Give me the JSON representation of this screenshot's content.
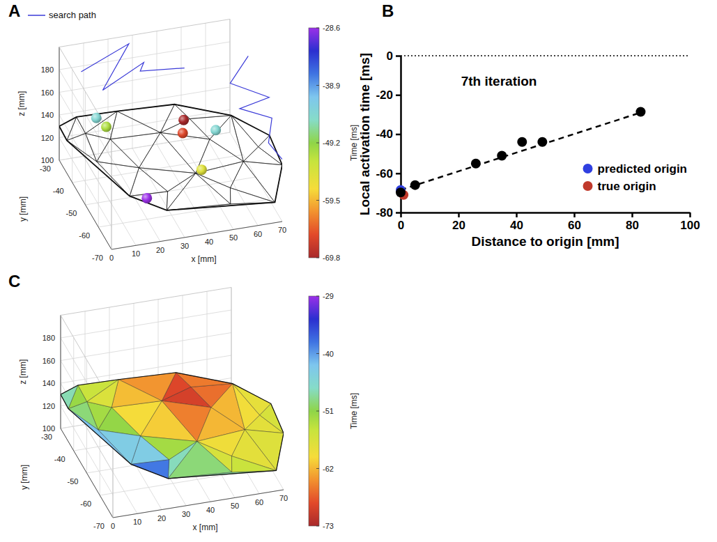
{
  "chart_data": [
    {
      "panel": "A",
      "type": "scatter3d",
      "xlabel": "x [mm]",
      "ylabel": "y [mm]",
      "zlabel": "z [mm]",
      "xlim": [
        0,
        70
      ],
      "xticks": [
        0,
        10,
        20,
        30,
        40,
        50,
        60,
        70
      ],
      "ylim": [
        -70,
        -30
      ],
      "yticks": [
        -70,
        -60,
        -50,
        -40,
        -30
      ],
      "zlim": [
        100,
        200
      ],
      "zticks": [
        100,
        120,
        140,
        160,
        180
      ],
      "grid": true,
      "legend": "upper left",
      "mesh": {
        "x": [
          0,
          6,
          20,
          43,
          63,
          68,
          70,
          67,
          52,
          28,
          16,
          10,
          1,
          15,
          34,
          51,
          60,
          22,
          42,
          53,
          30,
          7,
          46,
          65
        ],
        "y": [
          -30,
          -32,
          -37,
          -38,
          -44,
          -64,
          -70,
          -70,
          -64,
          -60,
          -54,
          -40,
          -34,
          -41,
          -44,
          -50,
          -59,
          -50,
          -56,
          -62,
          -57,
          -37,
          -44,
          -61
        ],
        "z": [
          130,
          140,
          150,
          150,
          145,
          165,
          150,
          118,
          110,
          105,
          110,
          115,
          125,
          135,
          140,
          140,
          135,
          125,
          125,
          120,
          115,
          135,
          148,
          150
        ]
      },
      "series": [
        {
          "name": "search path",
          "type": "line",
          "color": "#3a3ad8",
          "x": [
            9,
            28,
            13,
            32,
            30,
            46,
            null,
            70,
            61,
            70,
            59,
            69,
            66,
            70
          ],
          "y": [
            -30,
            -31,
            -39,
            -35,
            -36,
            -40,
            null,
            -44,
            -47,
            -60,
            -58,
            -64,
            -67,
            -70
          ],
          "z": [
            175,
            195,
            175,
            185,
            180,
            185,
            null,
            195,
            180,
            190,
            180,
            180,
            165,
            155
          ]
        },
        {
          "type": "scatter",
          "marker": "sphere",
          "x": [
            43,
            41,
            45,
            15,
            54,
            12,
            22
          ],
          "y": [
            -45,
            -48,
            -55,
            -38,
            -49,
            -36,
            -56
          ],
          "z": [
            150,
            145,
            125,
            140,
            145,
            145,
            110
          ],
          "time": [
            -69.8,
            -66,
            -55,
            -51,
            -44,
            -44,
            -28.6
          ]
        }
      ],
      "colorbar": {
        "label": "Time [ms]",
        "range": [
          -69.8,
          -28.6
        ],
        "ticks": [
          -28.6,
          -38.9,
          -49.2,
          -59.5,
          -69.8
        ]
      }
    },
    {
      "panel": "B",
      "type": "scatter",
      "title": "7th iteration",
      "xlabel": "Distance to origin [mm]",
      "ylabel": "Local activation time [ms]",
      "xlim": [
        0,
        100
      ],
      "xticks": [
        0,
        20,
        40,
        60,
        80,
        100
      ],
      "ylim": [
        -80,
        0
      ],
      "yticks": [
        -80,
        -60,
        -40,
        -20,
        0
      ],
      "legend": "lower right",
      "series": [
        {
          "type": "line",
          "line_style": "dashed",
          "color": "#000000",
          "x": [
            0,
            83
          ],
          "values": [
            -68.5,
            -29
          ]
        },
        {
          "name": "predicted origin",
          "type": "scatter",
          "color": "#2f3fe0",
          "x": [
            0
          ],
          "values": [
            -68.5
          ]
        },
        {
          "name": "true origin",
          "type": "scatter",
          "color": "#c0392b",
          "x": [
            1
          ],
          "values": [
            -71
          ]
        },
        {
          "type": "scatter",
          "color": "#000000",
          "x": [
            0,
            5,
            26,
            35,
            42,
            49,
            83
          ],
          "values": [
            -69.8,
            -66,
            -55,
            -51,
            -44,
            -44,
            -28.6
          ]
        }
      ]
    },
    {
      "panel": "C",
      "type": "surface3d",
      "xlabel": "x [mm]",
      "ylabel": "y [mm]",
      "zlabel": "z [mm]",
      "xlim": [
        0,
        70
      ],
      "xticks": [
        0,
        10,
        20,
        30,
        40,
        50,
        60,
        70
      ],
      "ylim": [
        -70,
        -30
      ],
      "yticks": [
        -70,
        -60,
        -50,
        -40,
        -30
      ],
      "zlim": [
        100,
        200
      ],
      "zticks": [
        100,
        120,
        140,
        160,
        180
      ],
      "grid": true,
      "mesh": {
        "x": [
          0,
          6,
          20,
          43,
          63,
          68,
          70,
          67,
          52,
          28,
          16,
          10,
          1,
          15,
          34,
          51,
          60,
          22,
          42,
          53,
          30,
          7,
          46,
          65
        ],
        "y": [
          -30,
          -32,
          -37,
          -38,
          -44,
          -64,
          -70,
          -70,
          -64,
          -60,
          -54,
          -40,
          -34,
          -41,
          -44,
          -50,
          -59,
          -50,
          -56,
          -62,
          -57,
          -37,
          -44,
          -61
        ],
        "z": [
          130,
          140,
          150,
          150,
          145,
          165,
          150,
          118,
          110,
          105,
          110,
          115,
          125,
          135,
          140,
          140,
          135,
          125,
          125,
          120,
          115,
          135,
          148,
          150
        ],
        "time": [
          -42,
          -52,
          -58,
          -64,
          -60,
          -56,
          -55,
          -56,
          -52,
          -36,
          -33,
          -45,
          -48,
          -57,
          -70,
          -66,
          -60,
          -52,
          -60,
          -57,
          -45,
          -55,
          -73,
          -58
        ]
      },
      "colorbar": {
        "label": "Time [ms]",
        "range": [
          -73,
          -29
        ],
        "ticks": [
          -29,
          -40,
          -51,
          -62,
          -73
        ]
      }
    }
  ]
}
